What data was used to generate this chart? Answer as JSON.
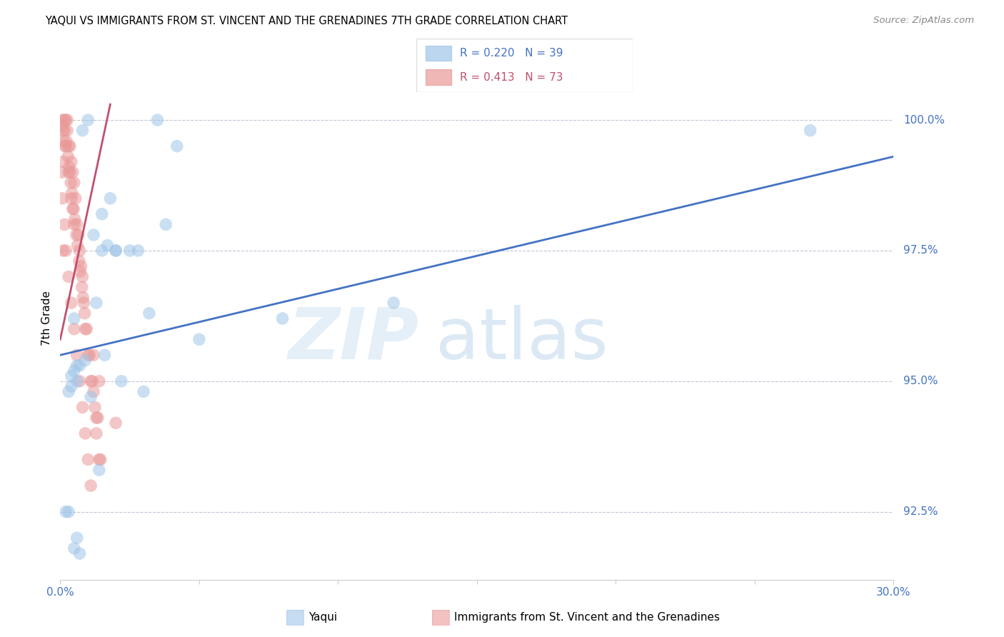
{
  "title": "YAQUI VS IMMIGRANTS FROM ST. VINCENT AND THE GRENADINES 7TH GRADE CORRELATION CHART",
  "source": "Source: ZipAtlas.com",
  "ylabel": "7th Grade",
  "ytick_vals": [
    92.5,
    95.0,
    97.5,
    100.0
  ],
  "ytick_labels": [
    "92.5%",
    "95.0%",
    "97.5%",
    "100.0%"
  ],
  "xlim": [
    0.0,
    30.0
  ],
  "ylim": [
    91.2,
    101.2
  ],
  "legend1_R": "0.220",
  "legend1_N": "39",
  "legend2_R": "0.413",
  "legend2_N": "73",
  "blue_color": "#9fc5e8",
  "pink_color": "#ea9999",
  "blue_line_color": "#4472c4",
  "pink_line_color": "#c0506e",
  "label_color": "#4472c4",
  "grid_color": "#b0b8cc",
  "blue_scatter_x": [
    0.3,
    0.5,
    0.8,
    1.0,
    1.2,
    1.5,
    1.5,
    1.8,
    2.0,
    2.2,
    2.5,
    2.8,
    3.0,
    3.2,
    3.5,
    3.8,
    4.2,
    5.0,
    8.0,
    12.0,
    0.2,
    0.3,
    0.4,
    0.4,
    0.5,
    0.6,
    0.6,
    0.7,
    0.9,
    1.1,
    1.3,
    1.4,
    1.6,
    1.7,
    2.0,
    0.5,
    0.6,
    0.7,
    27.0
  ],
  "blue_scatter_y": [
    94.8,
    96.2,
    99.8,
    100.0,
    97.8,
    98.2,
    97.5,
    98.5,
    97.5,
    95.0,
    97.5,
    97.5,
    94.8,
    96.3,
    100.0,
    98.0,
    99.5,
    95.8,
    96.2,
    96.5,
    92.5,
    92.5,
    94.9,
    95.1,
    95.2,
    95.0,
    95.3,
    95.3,
    95.4,
    94.7,
    96.5,
    93.3,
    95.5,
    97.6,
    97.5,
    91.8,
    92.0,
    91.7,
    99.8
  ],
  "pink_scatter_x": [
    0.05,
    0.08,
    0.1,
    0.12,
    0.15,
    0.15,
    0.18,
    0.2,
    0.2,
    0.22,
    0.25,
    0.25,
    0.28,
    0.3,
    0.3,
    0.32,
    0.35,
    0.35,
    0.38,
    0.4,
    0.4,
    0.42,
    0.45,
    0.45,
    0.48,
    0.5,
    0.5,
    0.52,
    0.55,
    0.58,
    0.6,
    0.62,
    0.65,
    0.68,
    0.7,
    0.72,
    0.75,
    0.78,
    0.8,
    0.82,
    0.85,
    0.88,
    0.9,
    0.95,
    1.0,
    1.05,
    1.1,
    1.15,
    1.2,
    1.25,
    1.3,
    1.35,
    1.4,
    1.45,
    0.1,
    0.2,
    0.3,
    0.4,
    0.5,
    0.6,
    0.7,
    0.8,
    0.9,
    1.0,
    1.1,
    1.2,
    1.3,
    1.4,
    2.0,
    0.05,
    0.08,
    0.12,
    0.15
  ],
  "pink_scatter_y": [
    100.0,
    99.9,
    99.8,
    99.6,
    99.8,
    100.0,
    99.5,
    99.5,
    100.0,
    99.6,
    99.8,
    100.0,
    99.3,
    99.0,
    99.5,
    99.1,
    99.0,
    99.5,
    98.8,
    99.2,
    98.5,
    98.6,
    99.0,
    98.3,
    98.3,
    98.8,
    98.0,
    98.1,
    98.5,
    97.8,
    98.0,
    97.6,
    97.8,
    97.3,
    97.5,
    97.1,
    97.2,
    96.8,
    97.0,
    96.6,
    96.5,
    96.3,
    96.0,
    96.0,
    95.5,
    95.5,
    95.0,
    95.0,
    95.5,
    94.5,
    94.0,
    94.3,
    93.5,
    93.5,
    97.5,
    97.5,
    97.0,
    96.5,
    96.0,
    95.5,
    95.0,
    94.5,
    94.0,
    93.5,
    93.0,
    94.8,
    94.3,
    95.0,
    94.2,
    99.0,
    98.5,
    99.2,
    98.0
  ],
  "blue_line_x": [
    0.0,
    30.0
  ],
  "blue_line_y": [
    95.5,
    99.3
  ],
  "pink_line_x": [
    0.0,
    1.8
  ],
  "pink_line_y": [
    95.8,
    100.3
  ],
  "bottom_legend_blue": "Yaqui",
  "bottom_legend_pink": "Immigrants from St. Vincent and the Grenadines"
}
